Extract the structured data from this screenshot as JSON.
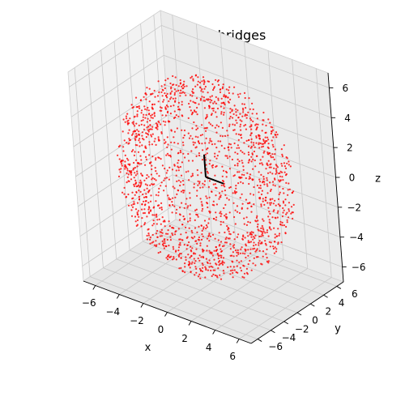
{
  "chart_data": {
    "type": "scatter",
    "projection": "3d",
    "title": "PHETYRTYR bridges",
    "xlabel": "x",
    "ylabel": "y",
    "zlabel": "z",
    "xlim": [
      -7,
      7
    ],
    "ylim": [
      -7,
      7
    ],
    "zlim": [
      -7,
      7
    ],
    "xticks": [
      -6,
      -4,
      -2,
      0,
      2,
      4,
      6
    ],
    "yticks": [
      -6,
      -4,
      -2,
      0,
      2,
      4,
      6
    ],
    "zticks": [
      -6,
      -4,
      -2,
      0,
      2,
      4,
      6
    ],
    "grid": true,
    "points": {
      "color": "#ff0000",
      "shape": "spherical shell",
      "center": [
        0,
        0,
        0
      ],
      "radius_range": [
        4.5,
        6.5
      ],
      "approx_count": 1800
    },
    "segments": [
      {
        "color": "#000000",
        "from": [
          0,
          0,
          0
        ],
        "to": [
          1.5,
          0,
          0
        ]
      },
      {
        "color": "#000000",
        "from": [
          0,
          0,
          0
        ],
        "to": [
          0,
          0,
          1.5
        ]
      }
    ]
  }
}
